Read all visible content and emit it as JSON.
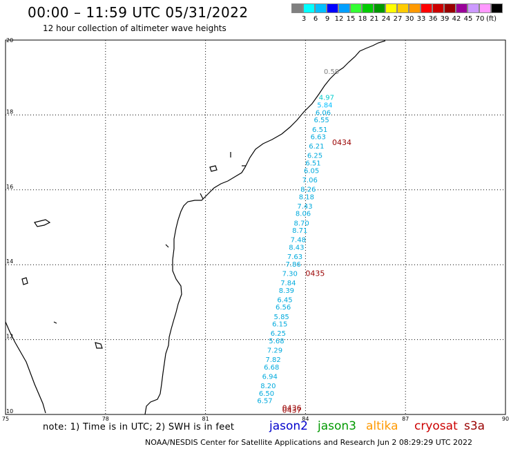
{
  "header": {
    "title": "00:00 – 11:59 UTC 05/31/2022",
    "subtitle": "12 hour collection of altimeter wave heights"
  },
  "colorbar": {
    "colors": [
      "#808080",
      "#00ffff",
      "#00bfff",
      "#0000ff",
      "#009fff",
      "#33ff33",
      "#00cc00",
      "#009900",
      "#ffff00",
      "#ffcc00",
      "#ff9900",
      "#ff0000",
      "#cc0000",
      "#990000",
      "#990099",
      "#cc99ff",
      "#ff99ff",
      "#000000"
    ],
    "labels": [
      "3",
      "6",
      "9",
      "12",
      "15",
      "18",
      "21",
      "24",
      "27",
      "30",
      "33",
      "36",
      "39",
      "42",
      "45",
      "70"
    ],
    "unit": "(ft)"
  },
  "axes": {
    "lon_ticks": [
      "75",
      "78",
      "81",
      "84",
      "87",
      "90"
    ],
    "lat_ticks": [
      "20",
      "18",
      "16",
      "14",
      "12",
      "10"
    ]
  },
  "track_labels": [
    {
      "text": "0434",
      "lon": 84.8,
      "lat": 17.2
    },
    {
      "text": "0435",
      "lon": 84.0,
      "lat": 13.7
    },
    {
      "text": "0436",
      "lon": 83.3,
      "lat": 10.1
    },
    {
      "text": "0437",
      "lon": 83.3,
      "lat": 10.05
    }
  ],
  "wave_heights": [
    {
      "v": "0.59",
      "lon": 84.55,
      "lat": 19.1,
      "color": "#808080"
    },
    {
      "v": "4.97",
      "lon": 84.4,
      "lat": 18.4,
      "color": "#00cccc"
    },
    {
      "v": "5.84",
      "lon": 84.35,
      "lat": 18.2,
      "color": "#00bfff"
    },
    {
      "v": "6.06",
      "lon": 84.3,
      "lat": 18.0,
      "color": "#00aadd"
    },
    {
      "v": "6.55",
      "lon": 84.25,
      "lat": 17.8,
      "color": "#00aadd"
    },
    {
      "v": "6.51",
      "lon": 84.2,
      "lat": 17.55,
      "color": "#00aadd"
    },
    {
      "v": "6.63",
      "lon": 84.15,
      "lat": 17.35,
      "color": "#00aadd"
    },
    {
      "v": "6.21",
      "lon": 84.1,
      "lat": 17.1,
      "color": "#00aadd"
    },
    {
      "v": "6.25",
      "lon": 84.05,
      "lat": 16.85,
      "color": "#00aadd"
    },
    {
      "v": "6.51",
      "lon": 84.0,
      "lat": 16.65,
      "color": "#00aadd"
    },
    {
      "v": "6.05",
      "lon": 83.95,
      "lat": 16.45,
      "color": "#00aadd"
    },
    {
      "v": "7.06",
      "lon": 83.9,
      "lat": 16.2,
      "color": "#00aadd"
    },
    {
      "v": "8.26",
      "lon": 83.85,
      "lat": 15.95,
      "color": "#00aadd"
    },
    {
      "v": "8.18",
      "lon": 83.8,
      "lat": 15.75,
      "color": "#00aadd"
    },
    {
      "v": "7.43",
      "lon": 83.75,
      "lat": 15.5,
      "color": "#00aadd"
    },
    {
      "v": "8.06",
      "lon": 83.7,
      "lat": 15.3,
      "color": "#00aadd"
    },
    {
      "v": "8.70",
      "lon": 83.65,
      "lat": 15.05,
      "color": "#00aadd"
    },
    {
      "v": "8.71",
      "lon": 83.6,
      "lat": 14.85,
      "color": "#00aadd"
    },
    {
      "v": "7.48",
      "lon": 83.55,
      "lat": 14.6,
      "color": "#00aadd"
    },
    {
      "v": "8.43",
      "lon": 83.5,
      "lat": 14.4,
      "color": "#00aadd"
    },
    {
      "v": "7.63",
      "lon": 83.45,
      "lat": 14.15,
      "color": "#00aadd"
    },
    {
      "v": "7.86",
      "lon": 83.4,
      "lat": 13.95,
      "color": "#00aadd"
    },
    {
      "v": "7.30",
      "lon": 83.3,
      "lat": 13.7,
      "color": "#00aadd"
    },
    {
      "v": "7.84",
      "lon": 83.25,
      "lat": 13.45,
      "color": "#00aadd"
    },
    {
      "v": "8.39",
      "lon": 83.2,
      "lat": 13.25,
      "color": "#00aadd"
    },
    {
      "v": "6.45",
      "lon": 83.15,
      "lat": 13.0,
      "color": "#00aadd"
    },
    {
      "v": "6.56",
      "lon": 83.1,
      "lat": 12.8,
      "color": "#00aadd"
    },
    {
      "v": "5.85",
      "lon": 83.05,
      "lat": 12.55,
      "color": "#00aadd"
    },
    {
      "v": "6.15",
      "lon": 83.0,
      "lat": 12.35,
      "color": "#00aadd"
    },
    {
      "v": "6.25",
      "lon": 82.95,
      "lat": 12.1,
      "color": "#00aadd"
    },
    {
      "v": "5.68",
      "lon": 82.9,
      "lat": 11.9,
      "color": "#00aadd"
    },
    {
      "v": "7.29",
      "lon": 82.85,
      "lat": 11.65,
      "color": "#00aadd"
    },
    {
      "v": "7.82",
      "lon": 82.8,
      "lat": 11.4,
      "color": "#00aadd"
    },
    {
      "v": "6.68",
      "lon": 82.75,
      "lat": 11.2,
      "color": "#00aadd"
    },
    {
      "v": "6.94",
      "lon": 82.7,
      "lat": 10.95,
      "color": "#00aadd"
    },
    {
      "v": "8.20",
      "lon": 82.65,
      "lat": 10.7,
      "color": "#00aadd"
    },
    {
      "v": "6.50",
      "lon": 82.6,
      "lat": 10.5,
      "color": "#00aadd"
    },
    {
      "v": "6.57",
      "lon": 82.55,
      "lat": 10.3,
      "color": "#00aadd"
    }
  ],
  "footer": {
    "note": "note:  1) Time is in UTC;  2) SWH is in feet",
    "satellites": [
      {
        "name": "jason2",
        "color": "#0000cc"
      },
      {
        "name": "jason3",
        "color": "#009900"
      },
      {
        "name": "altika",
        "color": "#ff9900"
      },
      {
        "name": "cryosat",
        "color": "#cc0000"
      },
      {
        "name": "s3a",
        "color": "#990000"
      }
    ],
    "credit": "NOAA/NESDIS Center for Satellite Applications and Research    Jun  2 08:29:29 UTC 2022"
  }
}
